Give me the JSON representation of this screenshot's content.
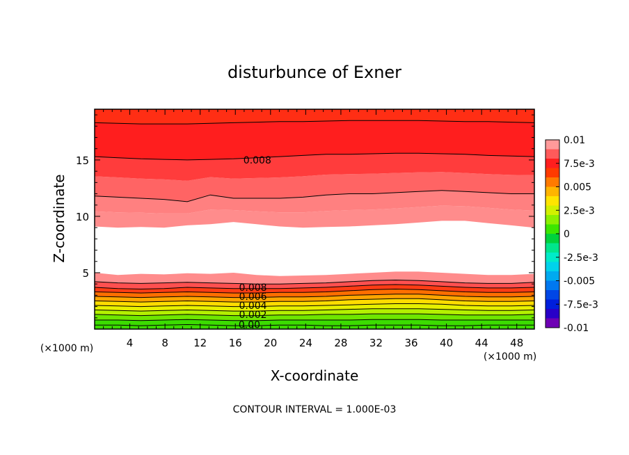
{
  "chart_data": {
    "type": "filled-contour",
    "title": "disturbunce of Exner",
    "xlabel": "X-coordinate",
    "ylabel": "Z-coordinate",
    "x_unit_left": "(×1000 m)",
    "x_unit_right": "(×1000 m)",
    "footer": "CONTOUR INTERVAL = 1.000E-03",
    "xlim": [
      0,
      50
    ],
    "ylim": [
      0,
      19.5
    ],
    "x_ticks": [
      4,
      8,
      12,
      16,
      20,
      24,
      28,
      32,
      36,
      40,
      44,
      48
    ],
    "y_ticks": [
      5,
      10,
      15
    ],
    "contour_interval": 0.001,
    "contour_labels": [
      {
        "text": "0.008",
        "x": 18.5,
        "y": 15.0
      },
      {
        "text": "0.008",
        "x": 18.0,
        "y": 3.7
      },
      {
        "text": "0.006",
        "x": 18.0,
        "y": 2.9
      },
      {
        "text": "0.004",
        "x": 18.0,
        "y": 2.1
      },
      {
        "text": "0.002",
        "x": 18.0,
        "y": 1.3
      },
      {
        "text": "0.00",
        "x": 17.6,
        "y": 0.4
      }
    ],
    "upper_layer": {
      "boundary_y": [
        9.1,
        9.0,
        9.05,
        9.0,
        9.2,
        9.3,
        9.5,
        9.3,
        9.1,
        9.0,
        9.05,
        9.1,
        9.2,
        9.3,
        9.45,
        9.6,
        9.6,
        9.4,
        9.2,
        9.0
      ],
      "contour_y": {
        "0.007": [
          11.8,
          11.7,
          11.6,
          11.5,
          11.3,
          11.9,
          11.6,
          11.6,
          11.6,
          11.7,
          11.9,
          12.0,
          12.0,
          12.1,
          12.2,
          12.3,
          12.2,
          12.1,
          12.0,
          12.0
        ],
        "0.008": [
          15.3,
          15.2,
          15.1,
          15.05,
          15.0,
          15.05,
          15.1,
          15.2,
          15.3,
          15.4,
          15.5,
          15.5,
          15.55,
          15.6,
          15.6,
          15.55,
          15.5,
          15.4,
          15.35,
          15.3
        ],
        "0.009": [
          18.3,
          18.25,
          18.2,
          18.2,
          18.2,
          18.25,
          18.3,
          18.35,
          18.4,
          18.4,
          18.45,
          18.5,
          18.5,
          18.5,
          18.5,
          18.45,
          18.4,
          18.4,
          18.35,
          18.3
        ]
      }
    },
    "lower_layer": {
      "boundary_y": [
        5.0,
        4.8,
        4.9,
        4.85,
        4.95,
        4.9,
        5.0,
        4.8,
        4.7,
        4.75,
        4.8,
        4.9,
        5.0,
        5.1,
        5.1,
        5.0,
        4.9,
        4.8,
        4.8,
        4.9
      ],
      "contour_y": {
        "0.000": [
          0.35,
          0.35,
          0.3,
          0.35,
          0.4,
          0.35,
          0.3,
          0.3,
          0.35,
          0.35,
          0.3,
          0.3,
          0.35,
          0.35,
          0.35,
          0.3,
          0.3,
          0.35,
          0.35,
          0.35
        ],
        "0.001": [
          0.8,
          0.8,
          0.75,
          0.8,
          0.85,
          0.8,
          0.75,
          0.75,
          0.8,
          0.8,
          0.8,
          0.8,
          0.85,
          0.85,
          0.85,
          0.8,
          0.8,
          0.8,
          0.8,
          0.8
        ],
        "0.002": [
          1.3,
          1.25,
          1.2,
          1.25,
          1.3,
          1.25,
          1.2,
          1.2,
          1.25,
          1.25,
          1.3,
          1.3,
          1.35,
          1.35,
          1.35,
          1.3,
          1.25,
          1.25,
          1.25,
          1.3
        ],
        "0.003": [
          1.7,
          1.65,
          1.6,
          1.65,
          1.7,
          1.65,
          1.6,
          1.6,
          1.65,
          1.65,
          1.7,
          1.75,
          1.8,
          1.8,
          1.8,
          1.75,
          1.7,
          1.65,
          1.65,
          1.7
        ],
        "0.004": [
          2.1,
          2.05,
          2.0,
          2.05,
          2.1,
          2.05,
          2.0,
          2.0,
          2.05,
          2.05,
          2.1,
          2.15,
          2.2,
          2.25,
          2.25,
          2.2,
          2.1,
          2.05,
          2.05,
          2.1
        ],
        "0.005": [
          2.5,
          2.45,
          2.4,
          2.45,
          2.5,
          2.45,
          2.4,
          2.4,
          2.45,
          2.45,
          2.5,
          2.6,
          2.65,
          2.7,
          2.7,
          2.6,
          2.5,
          2.45,
          2.45,
          2.5
        ],
        "0.006": [
          2.9,
          2.85,
          2.8,
          2.85,
          2.9,
          2.85,
          2.8,
          2.8,
          2.85,
          2.85,
          2.9,
          3.0,
          3.05,
          3.1,
          3.1,
          3.0,
          2.9,
          2.85,
          2.85,
          2.9
        ],
        "0.007": [
          3.3,
          3.25,
          3.2,
          3.25,
          3.3,
          3.25,
          3.2,
          3.2,
          3.25,
          3.25,
          3.3,
          3.4,
          3.5,
          3.55,
          3.5,
          3.4,
          3.3,
          3.25,
          3.25,
          3.3
        ],
        "0.008": [
          3.7,
          3.6,
          3.55,
          3.6,
          3.7,
          3.65,
          3.6,
          3.6,
          3.6,
          3.65,
          3.7,
          3.8,
          3.9,
          3.95,
          3.9,
          3.8,
          3.7,
          3.65,
          3.65,
          3.7
        ],
        "0.009": [
          4.2,
          4.1,
          4.05,
          4.1,
          4.15,
          4.1,
          4.05,
          4.0,
          4.0,
          4.05,
          4.1,
          4.2,
          4.3,
          4.35,
          4.3,
          4.2,
          4.1,
          4.05,
          4.05,
          4.15
        ]
      }
    },
    "colorbar": {
      "min": -0.01,
      "max": 0.01,
      "labels": [
        "0.01",
        "7.5e-3",
        "0.005",
        "2.5e-3",
        "0",
        "-2.5e-3",
        "-0.005",
        "-7.5e-3",
        "-0.01"
      ],
      "label_values": [
        0.01,
        0.0075,
        0.005,
        0.0025,
        0,
        -0.0025,
        -0.005,
        -0.0075,
        -0.01
      ],
      "bands": [
        {
          "value": 0.0095,
          "color": "#ff9a9a"
        },
        {
          "value": 0.0085,
          "color": "#ff5a5a"
        },
        {
          "value": 0.0075,
          "color": "#ff1e1e"
        },
        {
          "value": 0.0065,
          "color": "#ff3a00"
        },
        {
          "value": 0.0055,
          "color": "#ff7a00"
        },
        {
          "value": 0.0045,
          "color": "#ffb400"
        },
        {
          "value": 0.0035,
          "color": "#ffe400"
        },
        {
          "value": 0.0025,
          "color": "#d2f000"
        },
        {
          "value": 0.0015,
          "color": "#8cf000"
        },
        {
          "value": 0.0005,
          "color": "#3ce600"
        },
        {
          "value": -0.0005,
          "color": "#00d23c"
        },
        {
          "value": -0.0015,
          "color": "#00e68c"
        },
        {
          "value": -0.0025,
          "color": "#00ebc8"
        },
        {
          "value": -0.0035,
          "color": "#00d2eb"
        },
        {
          "value": -0.0045,
          "color": "#00aaf0"
        },
        {
          "value": -0.0055,
          "color": "#0078f0"
        },
        {
          "value": -0.0065,
          "color": "#0046e6"
        },
        {
          "value": -0.0075,
          "color": "#001edc"
        },
        {
          "value": -0.0085,
          "color": "#2800c8"
        },
        {
          "value": -0.0095,
          "color": "#6e00b4"
        }
      ]
    },
    "fill_colors": {
      "c0": "#3cdc00",
      "c1": "#6ee600",
      "c2": "#b4f000",
      "c3": "#e6f000",
      "c4": "#ffdc00",
      "c5": "#ffa500",
      "c6": "#ff6e00",
      "c7": "#ff3c14",
      "c8": "#ff1e1e",
      "c9": "#ff5050",
      "c10": "#ff8c8c",
      "c11": "#ff8080",
      "c12": "#ff6464",
      "c13": "#ff3c3c",
      "c14": "#ff1e1e",
      "c15": "#ff2e14"
    }
  }
}
